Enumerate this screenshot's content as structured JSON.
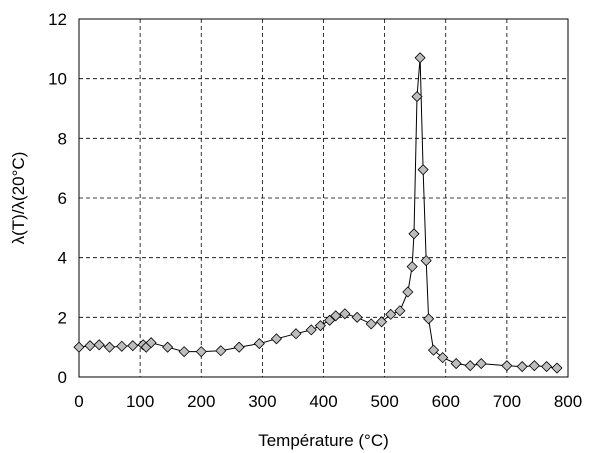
{
  "chart_data": {
    "type": "line",
    "title": "",
    "xlabel": "Température (°C)",
    "ylabel": "λ(T)/λ(20°C)",
    "xlim": [
      0,
      800
    ],
    "ylim": [
      0,
      12
    ],
    "xticks": [
      0,
      100,
      200,
      300,
      400,
      500,
      600,
      700,
      800
    ],
    "yticks": [
      0,
      2,
      4,
      6,
      8,
      10,
      12
    ],
    "grid": true,
    "legend": "none",
    "series": [
      {
        "marker": "diamond",
        "marker_color": "#bdbdbd",
        "line_color": "#000000",
        "points": [
          [
            0,
            1.0
          ],
          [
            18,
            1.05
          ],
          [
            33,
            1.08
          ],
          [
            50,
            1.0
          ],
          [
            70,
            1.03
          ],
          [
            88,
            1.05
          ],
          [
            105,
            1.08
          ],
          [
            110,
            1.0
          ],
          [
            118,
            1.15
          ],
          [
            145,
            1.0
          ],
          [
            172,
            0.85
          ],
          [
            200,
            0.85
          ],
          [
            232,
            0.88
          ],
          [
            262,
            1.0
          ],
          [
            295,
            1.12
          ],
          [
            323,
            1.28
          ],
          [
            355,
            1.45
          ],
          [
            380,
            1.58
          ],
          [
            395,
            1.72
          ],
          [
            410,
            1.9
          ],
          [
            420,
            2.05
          ],
          [
            435,
            2.12
          ],
          [
            455,
            2.0
          ],
          [
            478,
            1.78
          ],
          [
            495,
            1.85
          ],
          [
            510,
            2.1
          ],
          [
            525,
            2.22
          ],
          [
            538,
            2.85
          ],
          [
            545,
            3.7
          ],
          [
            548,
            4.8
          ],
          [
            553,
            9.4
          ],
          [
            558,
            10.7
          ],
          [
            563,
            6.95
          ],
          [
            568,
            3.9
          ],
          [
            572,
            1.95
          ],
          [
            580,
            0.9
          ],
          [
            595,
            0.65
          ],
          [
            617,
            0.45
          ],
          [
            640,
            0.38
          ],
          [
            658,
            0.45
          ],
          [
            700,
            0.38
          ],
          [
            725,
            0.35
          ],
          [
            745,
            0.38
          ],
          [
            765,
            0.35
          ],
          [
            782,
            0.3
          ]
        ]
      }
    ]
  }
}
